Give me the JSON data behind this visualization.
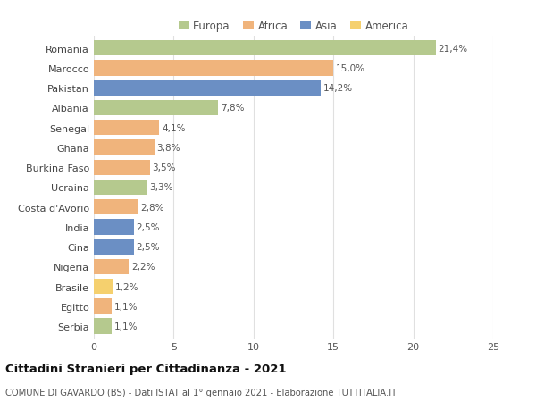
{
  "countries": [
    "Romania",
    "Marocco",
    "Pakistan",
    "Albania",
    "Senegal",
    "Ghana",
    "Burkina Faso",
    "Ucraina",
    "Costa d'Avorio",
    "India",
    "Cina",
    "Nigeria",
    "Brasile",
    "Egitto",
    "Serbia"
  ],
  "values": [
    21.4,
    15.0,
    14.2,
    7.8,
    4.1,
    3.8,
    3.5,
    3.3,
    2.8,
    2.5,
    2.5,
    2.2,
    1.2,
    1.1,
    1.1
  ],
  "labels": [
    "21,4%",
    "15,0%",
    "14,2%",
    "7,8%",
    "4,1%",
    "3,8%",
    "3,5%",
    "3,3%",
    "2,8%",
    "2,5%",
    "2,5%",
    "2,2%",
    "1,2%",
    "1,1%",
    "1,1%"
  ],
  "continents": [
    "Europa",
    "Africa",
    "Asia",
    "Europa",
    "Africa",
    "Africa",
    "Africa",
    "Europa",
    "Africa",
    "Asia",
    "Asia",
    "Africa",
    "America",
    "Africa",
    "Europa"
  ],
  "colors": {
    "Europa": "#b5c98e",
    "Africa": "#f0b47c",
    "Asia": "#6b8fc4",
    "America": "#f5d06e"
  },
  "legend_order": [
    "Europa",
    "Africa",
    "Asia",
    "America"
  ],
  "title": "Cittadini Stranieri per Cittadinanza - 2021",
  "subtitle": "COMUNE DI GAVARDO (BS) - Dati ISTAT al 1° gennaio 2021 - Elaborazione TUTTITALIA.IT",
  "xlim": [
    0,
    25
  ],
  "xticks": [
    0,
    5,
    10,
    15,
    20,
    25
  ],
  "background_color": "#ffffff",
  "grid_color": "#e0e0e0"
}
